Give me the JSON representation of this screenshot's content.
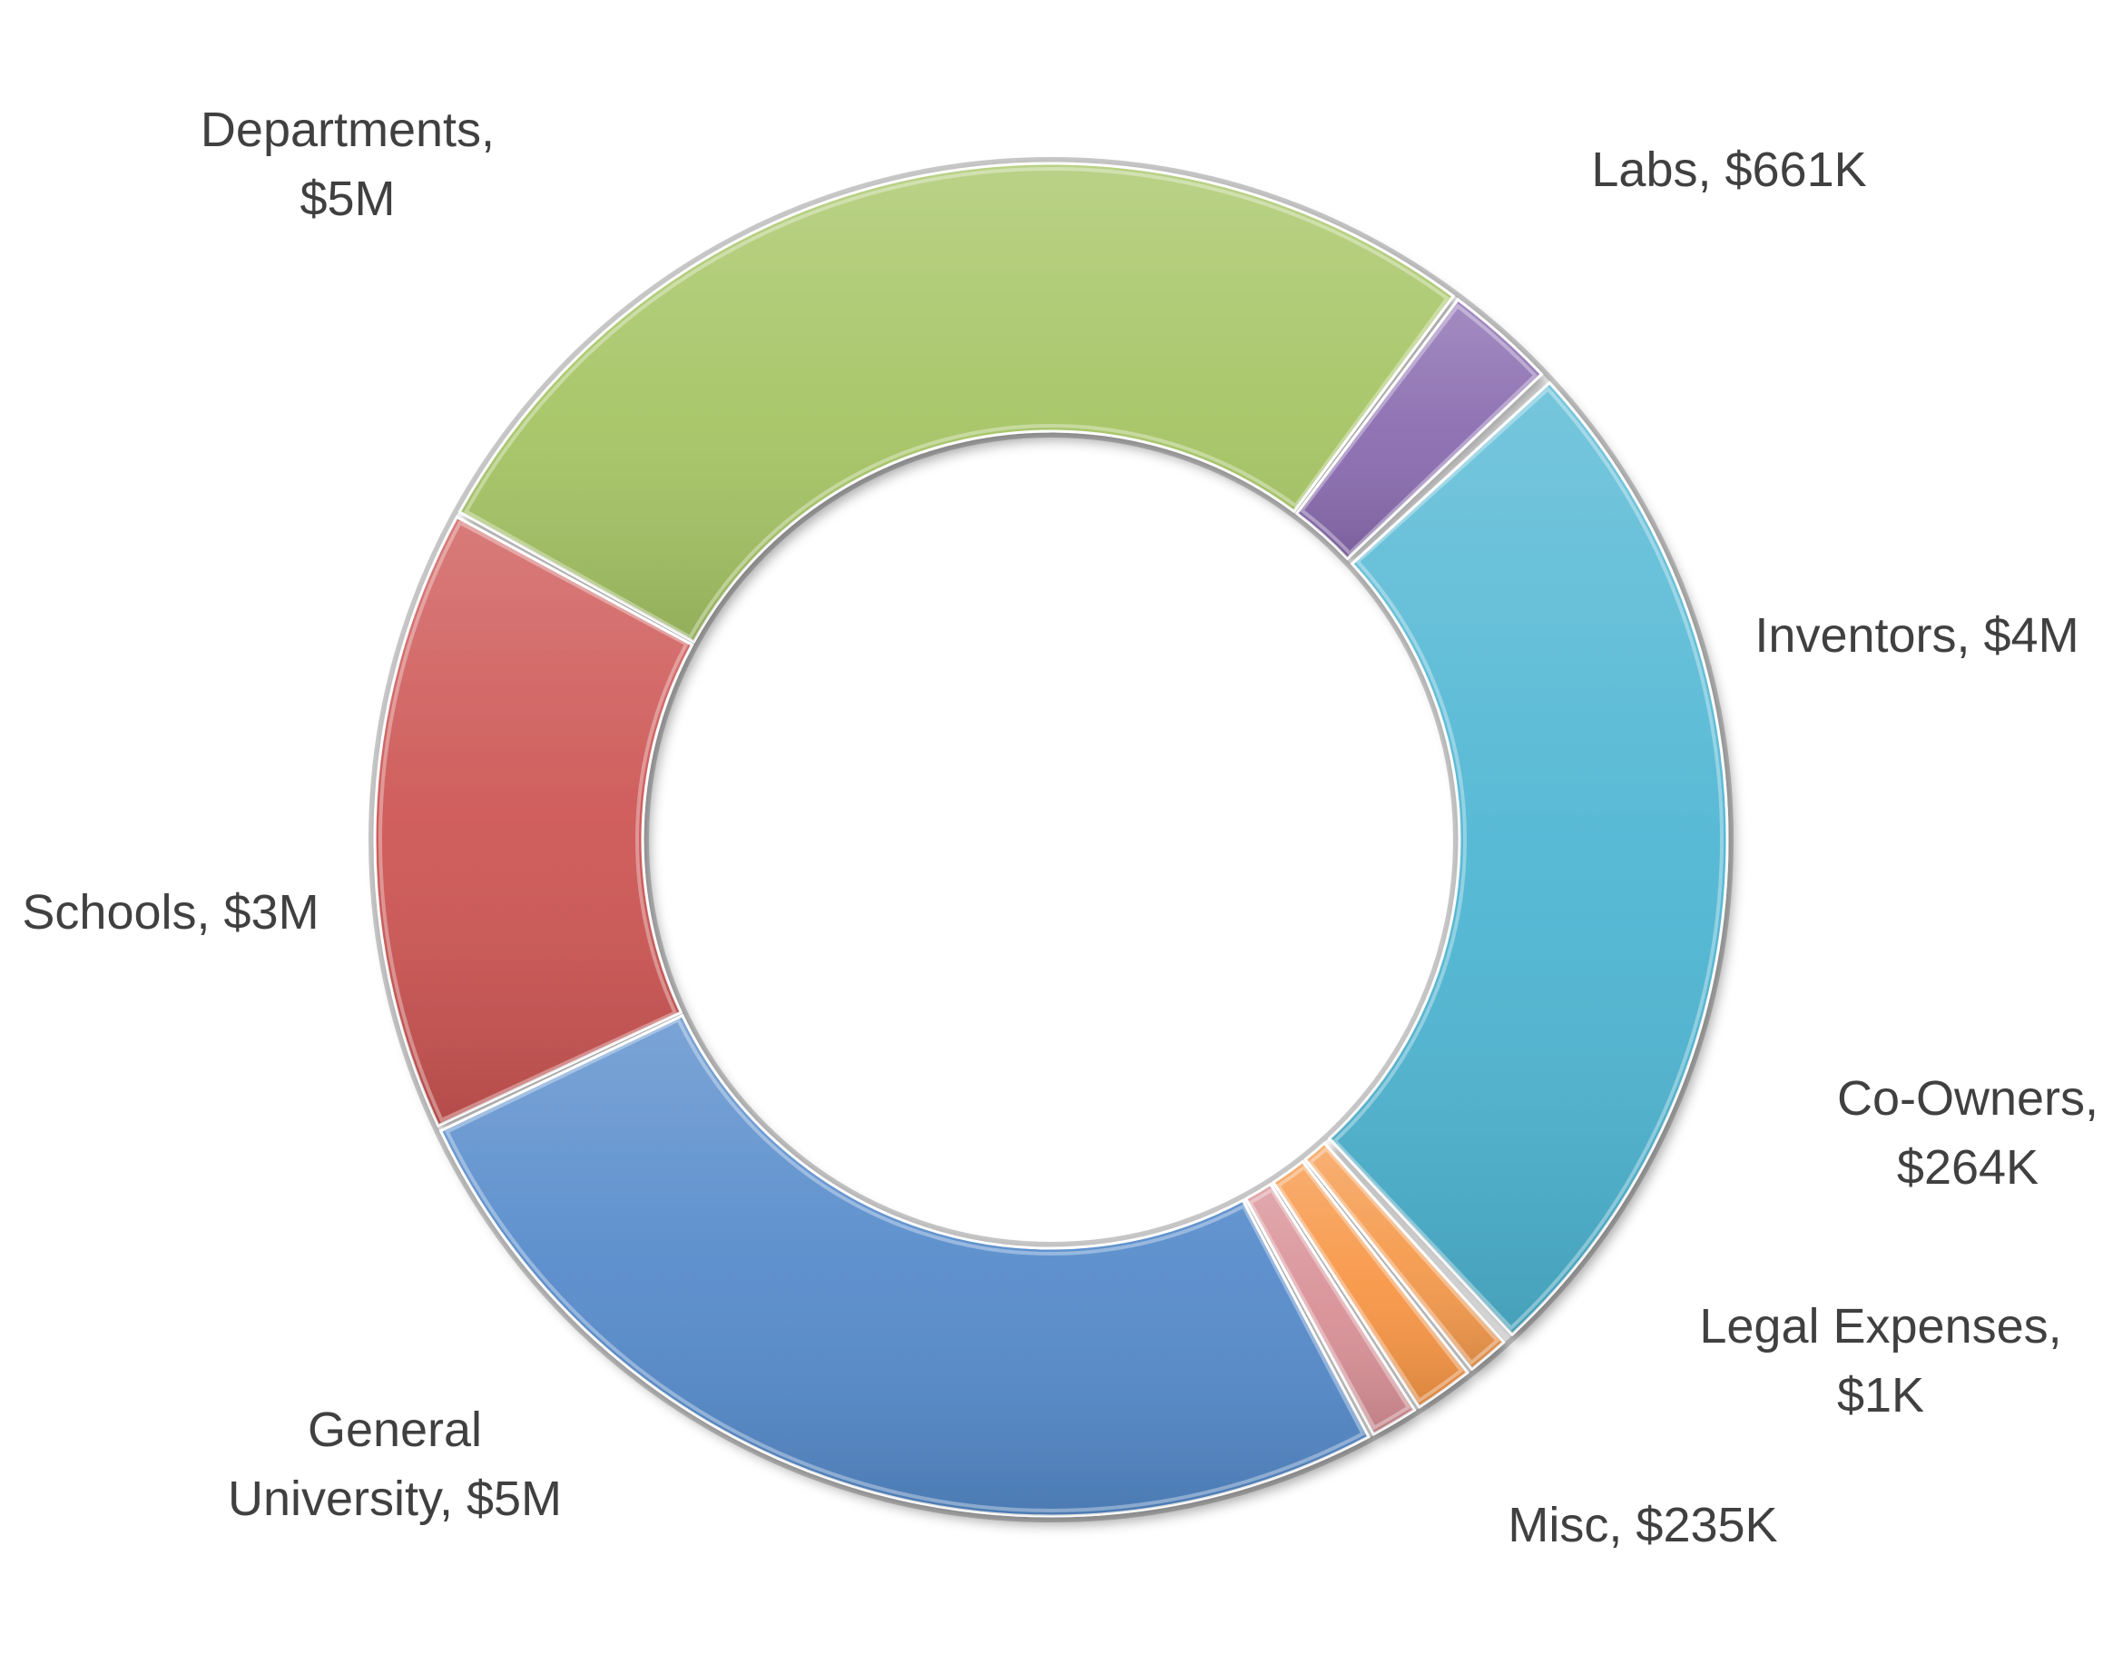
{
  "chart_data": {
    "type": "pie",
    "variant": "donut",
    "title": "",
    "slices": [
      {
        "name": "Labs",
        "value_label": "$661K",
        "value": 661000,
        "color": "#8064a2"
      },
      {
        "name": "Inventors",
        "value_label": "$4M",
        "value": 4000000,
        "color": "#4bacc6"
      },
      {
        "name": "Co-Owners",
        "value_label": "$264K",
        "value": 264000,
        "color": "#9bbb59"
      },
      {
        "name": "Legal Expenses",
        "value_label": "$1K",
        "value": 1000,
        "color": "#f79646"
      },
      {
        "name": "Misc",
        "value_label": "$235K",
        "value": 235000,
        "color": "#c0504d"
      },
      {
        "name": "General University",
        "value_label": "$5M",
        "value": 5000000,
        "color": "#4f81bd"
      },
      {
        "name": "Schools",
        "value_label": "$3M",
        "value": 3000000,
        "color": "#c0504d"
      },
      {
        "name": "Departments",
        "value_label": "$5M",
        "value": 5000000,
        "color": "#9bbb59"
      }
    ],
    "labels": [
      {
        "slice": 0,
        "lines": [
          "Labs, $661K"
        ]
      },
      {
        "slice": 1,
        "lines": [
          "Inventors, $4M"
        ]
      },
      {
        "slice": 2,
        "lines": [
          "Co-Owners,",
          "$264K"
        ]
      },
      {
        "slice": 3,
        "lines": [
          "Legal Expenses,",
          "$1K"
        ]
      },
      {
        "slice": 4,
        "lines": [
          "Misc, $235K"
        ]
      },
      {
        "slice": 5,
        "lines": [
          "General",
          "University, $5M"
        ]
      },
      {
        "slice": 6,
        "lines": [
          "Schools, $3M"
        ]
      },
      {
        "slice": 7,
        "lines": [
          "Departments,",
          "$5M"
        ]
      }
    ],
    "legend": "none"
  },
  "colors": {
    "labs": "#8a6cb0",
    "inventors": "#4fb6d3",
    "co_owners": "#f59a4d",
    "legal_expenses": "#f79646",
    "misc": "#d89096",
    "general_university": "#568bcb",
    "schools": "#cd5654",
    "departments": "#a6c565",
    "label_text": "#404040"
  }
}
